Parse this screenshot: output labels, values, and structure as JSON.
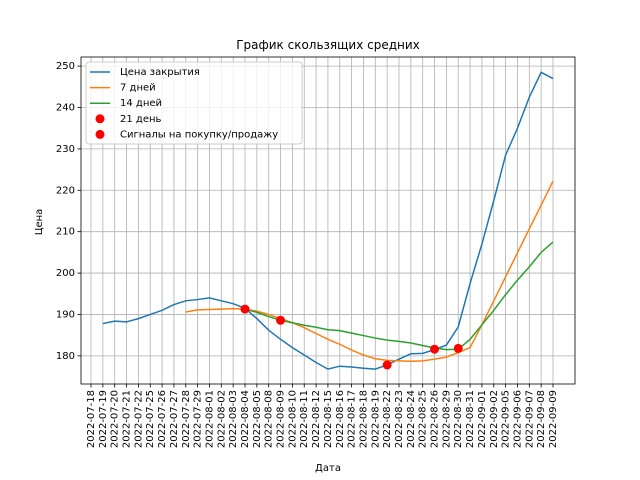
{
  "chart_data": {
    "type": "line",
    "title": "График скользящих средних",
    "x_label": "Дата",
    "y_label": "Цена",
    "categories": [
      "2022-07-18",
      "2022-07-19",
      "2022-07-20",
      "2022-07-21",
      "2022-07-22",
      "2022-07-25",
      "2022-07-26",
      "2022-07-27",
      "2022-07-28",
      "2022-07-29",
      "2022-08-01",
      "2022-08-02",
      "2022-08-03",
      "2022-08-04",
      "2022-08-05",
      "2022-08-08",
      "2022-08-09",
      "2022-08-10",
      "2022-08-11",
      "2022-08-12",
      "2022-08-15",
      "2022-08-16",
      "2022-08-17",
      "2022-08-18",
      "2022-08-19",
      "2022-08-22",
      "2022-08-23",
      "2022-08-24",
      "2022-08-25",
      "2022-08-26",
      "2022-08-29",
      "2022-08-30",
      "2022-08-31",
      "2022-09-01",
      "2022-09-02",
      "2022-09-05",
      "2022-09-06",
      "2022-09-07",
      "2022-09-08",
      "2022-09-09"
    ],
    "series": [
      {
        "name": "Цена закрытия",
        "color": "#1f77b4",
        "style": "line",
        "values": [
          null,
          187.8,
          188.4,
          188.2,
          189.0,
          190.0,
          191.0,
          192.4,
          193.3,
          193.6,
          194.0,
          193.3,
          192.6,
          191.5,
          189.0,
          186.2,
          184.0,
          182.0,
          180.2,
          178.4,
          176.8,
          177.5,
          177.3,
          177.0,
          176.8,
          177.8,
          179.2,
          180.5,
          180.6,
          181.5,
          182.6,
          187.0,
          197.5,
          207.0,
          217.5,
          228.5,
          235.0,
          242.5,
          248.5,
          247.0
        ]
      },
      {
        "name": "7 дней",
        "color": "#ff7f0e",
        "style": "line",
        "values": [
          null,
          null,
          null,
          null,
          null,
          null,
          null,
          null,
          190.6,
          191.1,
          191.2,
          191.3,
          191.4,
          191.3,
          190.8,
          190.0,
          189.0,
          188.0,
          186.8,
          185.4,
          184.0,
          182.8,
          181.4,
          180.2,
          179.3,
          178.9,
          178.8,
          178.7,
          178.8,
          179.2,
          179.7,
          180.8,
          182.0,
          187.5,
          193.3,
          199.1,
          204.9,
          210.7,
          216.4,
          222.2
        ]
      },
      {
        "name": "14 дней",
        "color": "#2ca02c",
        "style": "line",
        "values": [
          null,
          null,
          null,
          null,
          null,
          null,
          null,
          null,
          null,
          null,
          null,
          null,
          null,
          191.3,
          190.5,
          189.5,
          188.6,
          188.0,
          187.4,
          186.9,
          186.3,
          186.1,
          185.5,
          184.9,
          184.3,
          183.8,
          183.5,
          183.1,
          182.5,
          181.9,
          181.5,
          181.6,
          184.0,
          187.5,
          191.0,
          194.8,
          198.3,
          201.5,
          205.0,
          207.5
        ]
      },
      {
        "name": "21 день",
        "color": "#ff0000",
        "style": "marker",
        "values": [
          null,
          null,
          null,
          null,
          null,
          null,
          null,
          null,
          null,
          null,
          null,
          null,
          null,
          null,
          null,
          null,
          null,
          null,
          null,
          null,
          null,
          null,
          null,
          null,
          null,
          null,
          null,
          null,
          null,
          null,
          null,
          null,
          null,
          null,
          null,
          null,
          null,
          null,
          null,
          null
        ]
      },
      {
        "name": "Сигналы на покупку/продажу",
        "color": "#ff0000",
        "style": "marker",
        "values": [
          null,
          null,
          null,
          null,
          null,
          null,
          null,
          null,
          null,
          null,
          null,
          null,
          null,
          191.3,
          null,
          null,
          188.6,
          null,
          null,
          null,
          null,
          null,
          null,
          null,
          null,
          177.8,
          null,
          null,
          null,
          181.6,
          null,
          181.8,
          null,
          null,
          null,
          null,
          null,
          null,
          null,
          null
        ]
      }
    ],
    "ylim": [
      173.2,
      252.2
    ],
    "yticks": [
      180,
      190,
      200,
      210,
      220,
      230,
      240,
      250
    ],
    "grid": true,
    "legend": "upper left"
  }
}
